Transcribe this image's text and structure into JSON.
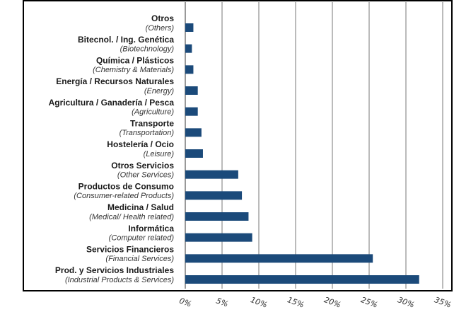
{
  "chart_data": {
    "type": "bar",
    "orientation": "horizontal",
    "categories": [
      "Otros",
      "Bitecnol. / Ing. Genética",
      "Química / Plásticos",
      "Energía / Recursos Naturales",
      "Agricultura / Ganadería / Pesca",
      "Transporte",
      "Hostelería / Ocio",
      "Otros Servicios",
      "Productos de Consumo",
      "Medicina / Salud",
      "Informática",
      "Servicios Financieros",
      "Prod. y Servicios Industriales"
    ],
    "category_translations": [
      "(Others)",
      "(Biotechnology)",
      "(Chemistry & Materials)",
      "(Energy)",
      "(Agriculture)",
      "(Transportation)",
      "(Leisure)",
      "(Other Services)",
      "(Consumer-related Products)",
      "(Medical/ Health related)",
      "(Computer related)",
      "(Financial Services)",
      "(Industrial Products & Services)"
    ],
    "values": [
      1.1,
      0.9,
      1.1,
      1.7,
      1.7,
      2.2,
      2.4,
      7.2,
      7.7,
      8.6,
      9.1,
      25.5,
      31.8
    ],
    "color": "#1b4a7a",
    "xlim": [
      0,
      35
    ],
    "xticks": [
      {
        "value": 0,
        "label": "0%"
      },
      {
        "value": 5,
        "label": "5%"
      },
      {
        "value": 10,
        "label": "10%"
      },
      {
        "value": 15,
        "label": "15%"
      },
      {
        "value": 20,
        "label": "20%"
      },
      {
        "value": 25,
        "label": "25%"
      },
      {
        "value": 30,
        "label": "30%"
      },
      {
        "value": 35,
        "label": "35%"
      }
    ],
    "grid": true
  }
}
